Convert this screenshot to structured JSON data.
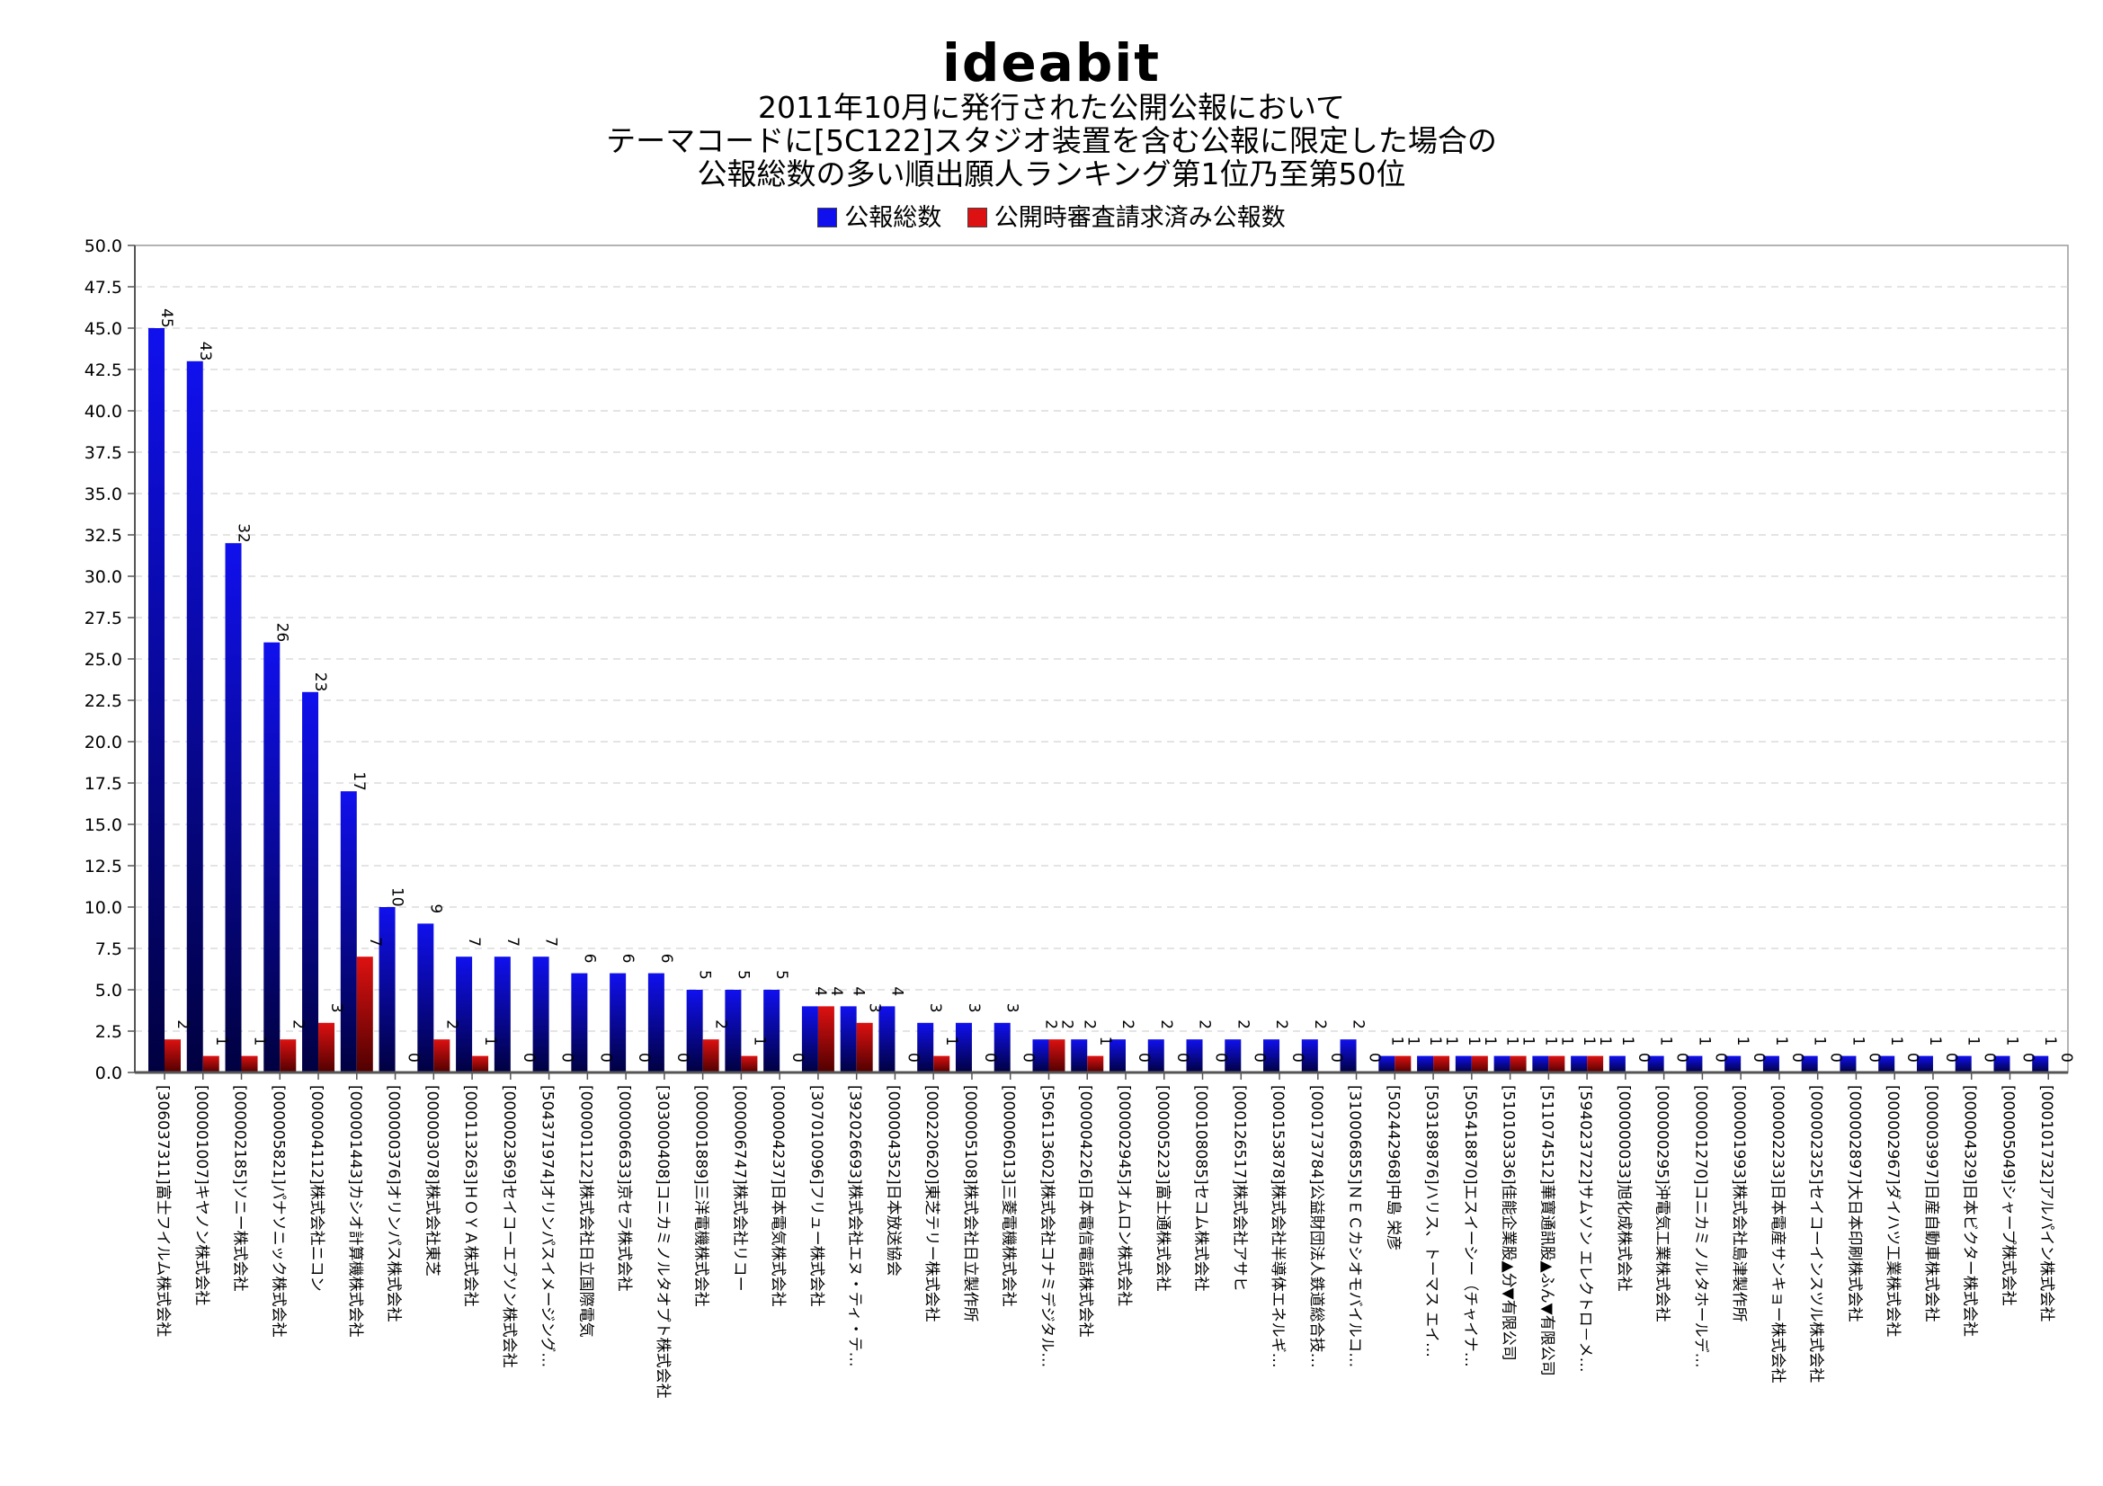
{
  "logo": "ideabit",
  "title_lines": [
    "2011年10月に発行された公開公報において",
    "テーマコードに[5C122]スタジオ装置を含む公報に限定した場合の",
    "公報総数の多い順出願人ランキング第1位乃至第50位"
  ],
  "colors": {
    "total": "#1010ee",
    "total_dark": "#000040",
    "exam": "#dd1111",
    "exam_dark": "#500000"
  },
  "chart_data": {
    "type": "bar",
    "title": "2011年10月に発行された公開公報において テーマコードに[5C122]スタジオ装置を含む公報に限定した場合の 公報総数の多い順出願人ランキング第1位乃至第50位",
    "xlabel": "",
    "ylabel": "",
    "ylim": [
      0,
      50
    ],
    "yticks": [
      "0.0",
      "2.5",
      "5.0",
      "7.5",
      "10.0",
      "12.5",
      "15.0",
      "17.5",
      "20.0",
      "22.5",
      "25.0",
      "27.5",
      "30.0",
      "32.5",
      "35.0",
      "37.5",
      "40.0",
      "42.5",
      "45.0",
      "47.5",
      "50.0"
    ],
    "grid": true,
    "legend_position": "top-center",
    "categories": [
      "[306037311]富士フイルム株式会社",
      "[000001007]キヤノン株式会社",
      "[000002185]ソニー株式会社",
      "[000005821]パナソニック株式会社",
      "[000004112]株式会社ニコン",
      "[000001443]カシオ計算機株式会社",
      "[000000376]オリンパス株式会社",
      "[000003078]株式会社東芝",
      "[000113263]ＨＯＹＡ株式会社",
      "[000002369]セイコーエプソン株式会社",
      "[504371974]オリンパスイメージング…",
      "[000001122]株式会社日立国際電気",
      "[000006633]京セラ株式会社",
      "[303000408]コニカミノルタオプト株式会社",
      "[000001889]三洋電機株式会社",
      "[000006747]株式会社リコー",
      "[000004237]日本電気株式会社",
      "[307010096]フリュー株式会社",
      "[392026693]株式会社エヌ・ティ・テ…",
      "[000004352]日本放送協会",
      "[000220620]東芝テリー株式会社",
      "[000005108]株式会社日立製作所",
      "[000006013]三菱電機株式会社",
      "[506113602]株式会社コナミデジタル…",
      "[000004226]日本電信電話株式会社",
      "[000002945]オムロン株式会社",
      "[000005223]富士通株式会社",
      "[000108085]セコム株式会社",
      "[000126517]株式会社アサヒ",
      "[000153878]株式会社半導体エネルギ…",
      "[000173784]公益財団法人鉄道総合技…",
      "[310006855]ＮＥＣカシオモバイルコ…",
      "[502442968]中島 栄彦",
      "[503189876]ハリス、トーマス エイ…",
      "[505418870]エスイーシー（チャイナ…",
      "[510103336]佳能企業股▲分▼有限公司",
      "[511074512]華寶通訊股▲ふん▼有限公司",
      "[594023722]サムソン エレクトロ－メ…",
      "[000000033]旭化成株式会社",
      "[000000295]沖電気工業株式会社",
      "[000001270]コニカミノルタホールデ…",
      "[000001993]株式会社島津製作所",
      "[000002233]日本電産サンキョー株式会社",
      "[000002325]セイコーインスツル株式会社",
      "[000002897]大日本印刷株式会社",
      "[000002967]ダイハツ工業株式会社",
      "[000003997]日産自動車株式会社",
      "[000004329]日本ビクター株式会社",
      "[000005049]シャープ株式会社",
      "[000101732]アルパイン株式会社"
    ],
    "series": [
      {
        "name": "公報総数",
        "values": [
          45,
          43,
          32,
          26,
          23,
          17,
          10,
          9,
          7,
          7,
          7,
          6,
          6,
          6,
          5,
          5,
          5,
          4,
          4,
          4,
          3,
          3,
          3,
          2,
          2,
          2,
          2,
          2,
          2,
          2,
          2,
          2,
          1,
          1,
          1,
          1,
          1,
          1,
          1,
          1,
          1,
          1,
          1,
          1,
          1,
          1,
          1,
          1,
          1,
          1
        ]
      },
      {
        "name": "公開時審査請求済み公報数",
        "values": [
          2,
          1,
          1,
          2,
          3,
          7,
          0,
          2,
          1,
          0,
          0,
          0,
          0,
          0,
          2,
          1,
          0,
          4,
          3,
          0,
          1,
          0,
          0,
          2,
          1,
          0,
          0,
          0,
          0,
          0,
          0,
          0,
          1,
          1,
          1,
          1,
          1,
          1,
          0,
          0,
          0,
          0,
          0,
          0,
          0,
          0,
          0,
          0,
          0,
          0
        ]
      }
    ]
  }
}
